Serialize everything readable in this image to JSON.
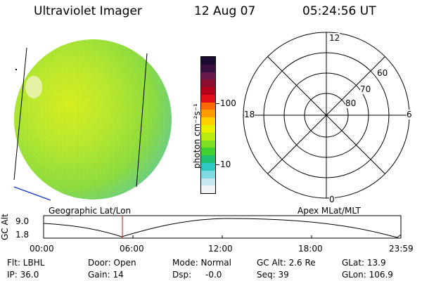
{
  "header": {
    "instrument": "Ultraviolet Imager",
    "date": "12 Aug 07",
    "time": "05:24:56 UT"
  },
  "colorbar": {
    "unit_label": "photon cm⁻²s⁻¹",
    "tick_100": "100",
    "tick_10": "10",
    "colors_top_to_bottom": [
      "#1a0a2e",
      "#3a1040",
      "#6a1a4a",
      "#8b1030",
      "#b5001a",
      "#e0101a",
      "#ff6a00",
      "#ff9a00",
      "#ffd000",
      "#e8f000",
      "#b8ec10",
      "#7ce020",
      "#40d030",
      "#20c070",
      "#30c8c0",
      "#80d8e0",
      "#c8e8f0",
      "#f0f4f8"
    ]
  },
  "polar_grid": {
    "mlt_top": "12",
    "mlt_left": "18",
    "mlt_right": "6",
    "mlt_bottom": "0",
    "lat_60": "60",
    "lat_70": "70",
    "lat_80": "80"
  },
  "altitude_plot": {
    "axis_label": "GC Alt",
    "y_top": "9.0",
    "y_bottom": "1.8",
    "left_title": "Geographic Lat/Lon",
    "right_title": "Apex MLat/MLT",
    "x_ticks": [
      "00:00",
      "06:00",
      "12:00",
      "18:00",
      "23:59"
    ],
    "current_time_color": "#d01010"
  },
  "status": {
    "filter_label": "Flt: LBHL",
    "ip_label": "IP: 36.0",
    "door_label": "Door: Open",
    "gain_label": "Gain: 14",
    "mode_label": "Mode: Normal",
    "dsp_label": "Dsp:",
    "dsp_value": "-0.0",
    "gcalt_label": "GC Alt: 2.6 Re",
    "seq_label": "Seq: 39",
    "glat_label": "GLat: 13.9",
    "glon_label": "GLon: 106.9"
  }
}
